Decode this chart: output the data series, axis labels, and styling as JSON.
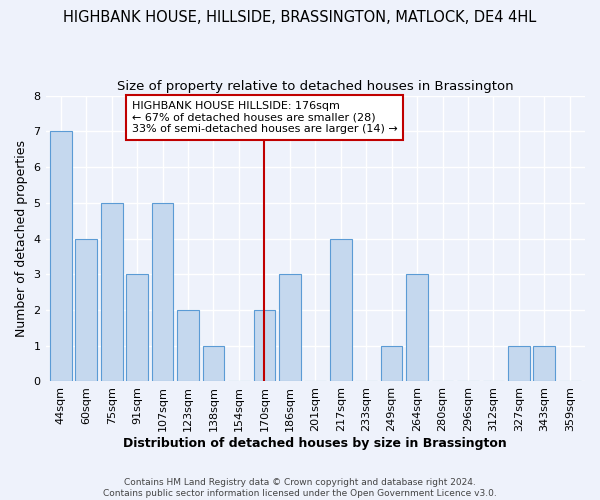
{
  "title": "HIGHBANK HOUSE, HILLSIDE, BRASSINGTON, MATLOCK, DE4 4HL",
  "subtitle": "Size of property relative to detached houses in Brassington",
  "xlabel": "Distribution of detached houses by size in Brassington",
  "ylabel": "Number of detached properties",
  "categories": [
    "44sqm",
    "60sqm",
    "75sqm",
    "91sqm",
    "107sqm",
    "123sqm",
    "138sqm",
    "154sqm",
    "170sqm",
    "186sqm",
    "201sqm",
    "217sqm",
    "233sqm",
    "249sqm",
    "264sqm",
    "280sqm",
    "296sqm",
    "312sqm",
    "327sqm",
    "343sqm",
    "359sqm"
  ],
  "values": [
    7,
    4,
    5,
    3,
    5,
    2,
    1,
    0,
    2,
    3,
    0,
    4,
    0,
    1,
    3,
    0,
    0,
    0,
    1,
    1,
    0
  ],
  "bar_color": "#c5d8ee",
  "bar_edge_color": "#5b9bd5",
  "vline_x_index": 8,
  "vline_color": "#c00000",
  "annotation_box_text": "HIGHBANK HOUSE HILLSIDE: 176sqm\n← 67% of detached houses are smaller (28)\n33% of semi-detached houses are larger (14) →",
  "annotation_box_color": "#c00000",
  "ylim": [
    0,
    8
  ],
  "yticks": [
    0,
    1,
    2,
    3,
    4,
    5,
    6,
    7,
    8
  ],
  "background_color": "#eef2fb",
  "grid_color": "#ffffff",
  "footnote": "Contains HM Land Registry data © Crown copyright and database right 2024.\nContains public sector information licensed under the Open Government Licence v3.0.",
  "title_fontsize": 10.5,
  "subtitle_fontsize": 9.5,
  "xlabel_fontsize": 9,
  "ylabel_fontsize": 9,
  "tick_fontsize": 8,
  "annot_fontsize": 8
}
